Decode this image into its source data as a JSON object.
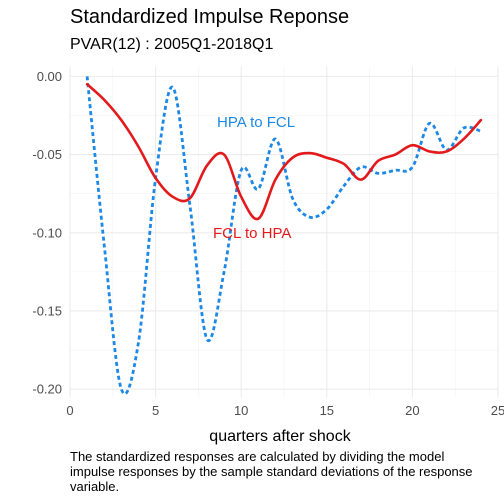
{
  "chart_data": {
    "type": "line",
    "title": "Standardized Impulse Reponse",
    "subtitle": "PVAR(12) : 2005Q1-2018Q1",
    "xlabel": "quarters after shock",
    "ylabel": "",
    "caption": "The standardized responses are calculated by dividing the model impulse responses by the sample standard deviations of the response variable.",
    "xlim": [
      0,
      25
    ],
    "ylim": [
      -0.205,
      0.006
    ],
    "x_ticks": [
      0,
      5,
      10,
      15,
      20,
      25
    ],
    "y_ticks": [
      0.0,
      -0.05,
      -0.1,
      -0.15,
      -0.2
    ],
    "x_tick_labels": [
      "0",
      "5",
      "10",
      "15",
      "20",
      "25"
    ],
    "y_tick_labels": [
      "0.00",
      "-0.05",
      "-0.10",
      "-0.15",
      "-0.20"
    ],
    "grid": true,
    "legend": "none (direct labels on lines)",
    "x": [
      1,
      2,
      3,
      4,
      5,
      6,
      7,
      8,
      9,
      10,
      11,
      12,
      13,
      14,
      15,
      16,
      17,
      18,
      19,
      20,
      21,
      22,
      23,
      24
    ],
    "series": [
      {
        "name": "HPA to FCL",
        "color": "#1e88e5",
        "style": "dotted",
        "values": [
          0.0,
          -0.108,
          -0.2,
          -0.17,
          -0.065,
          -0.007,
          -0.082,
          -0.168,
          -0.125,
          -0.06,
          -0.072,
          -0.04,
          -0.078,
          -0.09,
          -0.085,
          -0.07,
          -0.058,
          -0.062,
          -0.06,
          -0.058,
          -0.03,
          -0.047,
          -0.033,
          -0.035
        ]
      },
      {
        "name": "FCL to HPA",
        "color": "#e31a1c",
        "style": "solid",
        "values": [
          -0.005,
          -0.015,
          -0.028,
          -0.045,
          -0.065,
          -0.077,
          -0.078,
          -0.057,
          -0.05,
          -0.077,
          -0.091,
          -0.066,
          -0.052,
          -0.049,
          -0.052,
          -0.056,
          -0.066,
          -0.054,
          -0.05,
          -0.044,
          -0.048,
          -0.048,
          -0.04,
          -0.028
        ]
      }
    ]
  }
}
